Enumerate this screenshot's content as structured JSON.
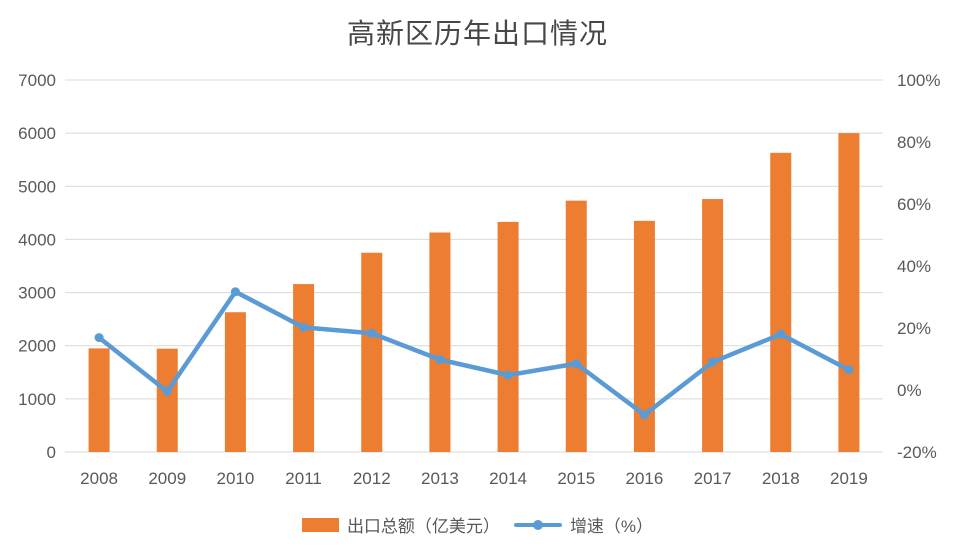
{
  "page": {
    "background": "#FFFFFF"
  },
  "colors": {
    "bar": "#ED7D31",
    "line": "#5B9BD5",
    "grid": "#D9D9D9",
    "axis_text": "#595959",
    "title_text": "#474747"
  },
  "chart_data": {
    "type": "combo-bar-line",
    "title": "高新区历年出口情况",
    "categories": [
      "2008",
      "2009",
      "2010",
      "2011",
      "2012",
      "2013",
      "2014",
      "2015",
      "2016",
      "2017",
      "2018",
      "2019"
    ],
    "series": [
      {
        "name": "出口总额（亿美元）",
        "type": "bar",
        "axis": "left",
        "values": [
          1950,
          1945,
          2630,
          3160,
          3750,
          4130,
          4330,
          4730,
          4350,
          4760,
          5630,
          6000
        ]
      },
      {
        "name": "增速（%）",
        "type": "line",
        "axis": "right",
        "values": [
          16.9,
          -0.5,
          31.7,
          20.2,
          18.3,
          9.8,
          4.8,
          8.5,
          -8.0,
          9.0,
          18.0,
          6.5
        ]
      }
    ],
    "left_axis": {
      "min": 0,
      "max": 7000,
      "step": 1000,
      "ticks": [
        "0",
        "1000",
        "2000",
        "3000",
        "4000",
        "5000",
        "6000",
        "7000"
      ]
    },
    "right_axis": {
      "min": -20,
      "max": 100,
      "step": 20,
      "ticks": [
        "-20%",
        "0%",
        "20%",
        "40%",
        "60%",
        "80%",
        "100%"
      ]
    },
    "grid": true,
    "legend_position": "bottom"
  }
}
